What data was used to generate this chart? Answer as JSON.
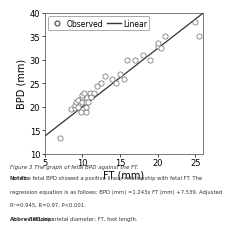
{
  "scatter_x": [
    7,
    8.5,
    9,
    9,
    9.2,
    9.5,
    9.5,
    9.8,
    10,
    10,
    10,
    10.2,
    10.5,
    10.5,
    10.5,
    10.8,
    11,
    11,
    11.2,
    11.5,
    12,
    12.5,
    13,
    14,
    14.5,
    15,
    15.5,
    16,
    17,
    18,
    19,
    20,
    20,
    20.5,
    21,
    25,
    25.5
  ],
  "scatter_y": [
    13.5,
    19.5,
    19.8,
    20.5,
    21,
    20,
    21.5,
    19,
    21,
    22,
    22.5,
    23,
    19,
    20,
    21,
    21,
    22.5,
    23,
    22,
    23,
    24.5,
    25,
    26.5,
    26,
    25,
    27,
    26,
    30,
    30,
    31,
    30,
    33,
    33.5,
    32.5,
    35,
    38,
    35
  ],
  "linear_slope": 1.243,
  "linear_intercept": 7.539,
  "linear_x_start": 5,
  "linear_x_end": 26,
  "xlabel": "FT (mm)",
  "ylabel": "BPD (mm)",
  "xlim": [
    5,
    26
  ],
  "ylim": [
    10,
    40
  ],
  "xticks": [
    5,
    10,
    15,
    20,
    25
  ],
  "yticks": [
    10,
    15,
    20,
    25,
    30,
    35,
    40
  ],
  "legend_observed": "Observed",
  "legend_linear": "Linear",
  "scatter_facecolor": "white",
  "scatter_edgecolor": "#666666",
  "line_color": "#333333",
  "fig_facecolor": "#ffffff",
  "ax_facecolor": "#ffffff",
  "marker_size": 14,
  "marker_linewidth": 0.5,
  "line_linewidth": 0.9,
  "xlabel_fontsize": 7,
  "ylabel_fontsize": 7,
  "tick_fontsize": 6,
  "legend_fontsize": 5.5,
  "caption_lines": [
    "Figure 3 The graph of fetal BPD against the FT.",
    "Notes: The fetal BPD showed a positive linear relationship with fetal FT. The",
    "regression equation is as follows: BPD (mm) =1.243x FT (mm) +7.539. Adjusted",
    "R²=0.945, R=0.97, P<0.001.",
    "Abbreviations: BPD, biparietal diameter; FT, foot length."
  ]
}
